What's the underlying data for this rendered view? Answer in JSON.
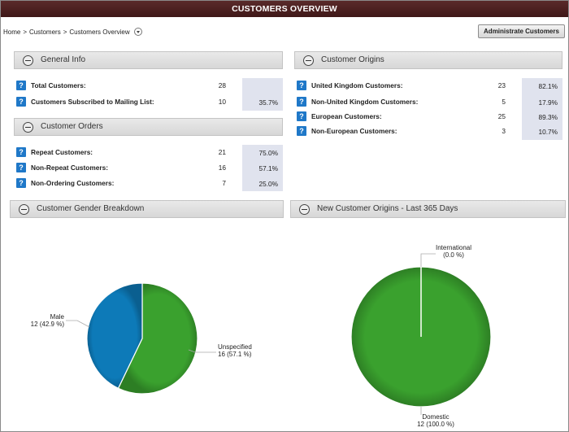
{
  "header": {
    "title": "CUSTOMERS OVERVIEW"
  },
  "breadcrumb": {
    "home": "Home",
    "customers": "Customers",
    "current": "Customers Overview",
    "separator": ">"
  },
  "toolbar": {
    "admin_label": "Administrate Customers"
  },
  "general_info": {
    "title": "General Info",
    "rows": [
      {
        "label": "Total Customers:",
        "value": "28",
        "pct": ""
      },
      {
        "label": "Customers Subscribed to Mailing List:",
        "value": "10",
        "pct": "35.7%"
      }
    ]
  },
  "customer_orders": {
    "title": "Customer Orders",
    "rows": [
      {
        "label": "Repeat Customers:",
        "value": "21",
        "pct": "75.0%"
      },
      {
        "label": "Non-Repeat Customers:",
        "value": "16",
        "pct": "57.1%"
      },
      {
        "label": "Non-Ordering Customers:",
        "value": "7",
        "pct": "25.0%"
      }
    ]
  },
  "customer_origins": {
    "title": "Customer Origins",
    "rows": [
      {
        "label": "United Kingdom Customers:",
        "value": "23",
        "pct": "82.1%"
      },
      {
        "label": "Non-United Kingdom Customers:",
        "value": "5",
        "pct": "17.9%"
      },
      {
        "label": "European Customers:",
        "value": "25",
        "pct": "89.3%"
      },
      {
        "label": "Non-European Customers:",
        "value": "3",
        "pct": "10.7%"
      }
    ]
  },
  "gender_panel": {
    "title": "Customer Gender Breakdown"
  },
  "origins_panel": {
    "title": "New Customer Origins - Last 365 Days"
  },
  "help_icon_glyph": "?",
  "colors": {
    "title_bg": "#4a1f1f",
    "help_icon": "#1f78c8",
    "pie_green": "#3aa12e",
    "pie_blue": "#0d7ab8",
    "pct_bg": "#e0e3ee"
  },
  "chart_data": [
    {
      "type": "pie",
      "title": "Customer Gender Breakdown",
      "slices": [
        {
          "name": "Unspecified",
          "value": 16,
          "percent": 57.1,
          "label_line1": "Unspecified",
          "label_line2": "16 (57.1 %)",
          "color": "#3aa12e"
        },
        {
          "name": "Male",
          "value": 12,
          "percent": 42.9,
          "label_line1": "Male",
          "label_line2": "12 (42.9 %)",
          "color": "#0d7ab8"
        }
      ]
    },
    {
      "type": "pie",
      "title": "New Customer Origins - Last 365 Days",
      "slices": [
        {
          "name": "Domestic",
          "value": 12,
          "percent": 100.0,
          "label_line1": "Domestic",
          "label_line2": "12 (100.0 %)",
          "color": "#3aa12e"
        },
        {
          "name": "International",
          "value": 0,
          "percent": 0.0,
          "label_line1": "International",
          "label_line2": "(0.0 %)",
          "color": "#0d7ab8"
        }
      ]
    }
  ]
}
